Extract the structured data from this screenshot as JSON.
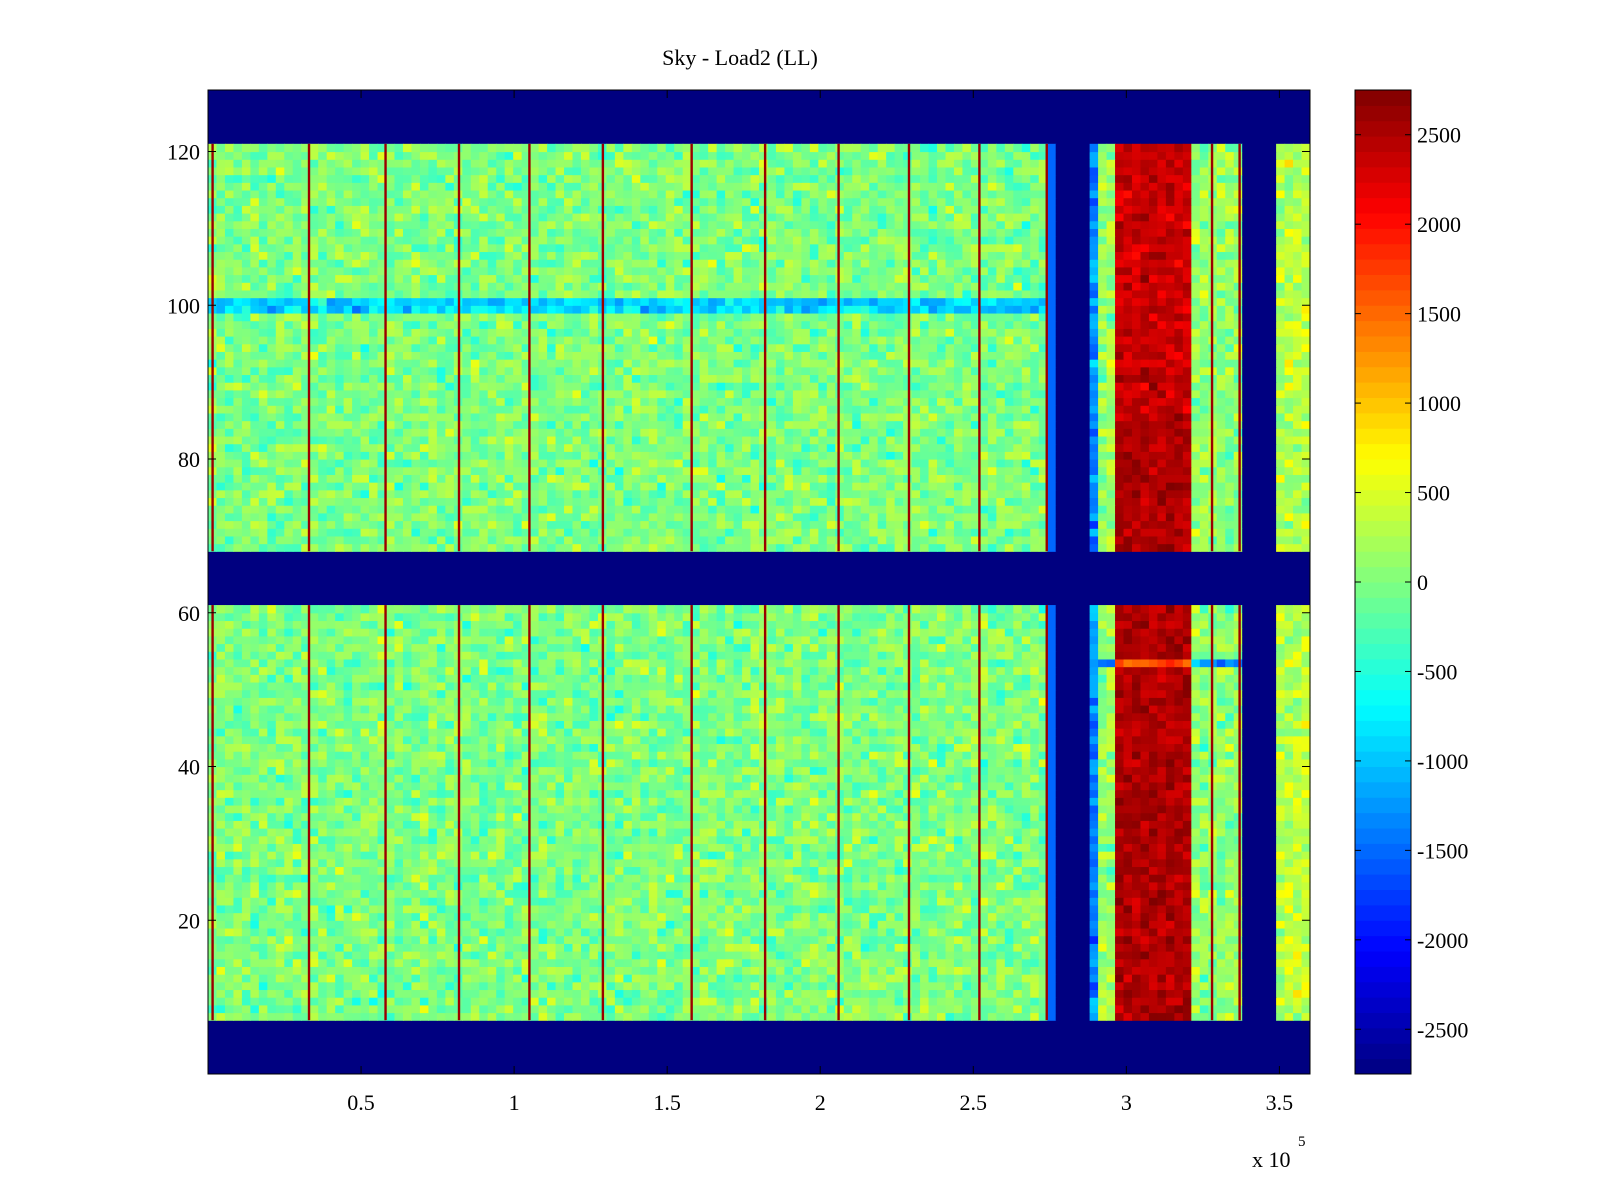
{
  "chart_data": {
    "type": "heatmap",
    "title": "Sky - Load2 (LL)",
    "xlabel": "",
    "ylabel": "",
    "x_multiplier_label": "x 10",
    "x_multiplier_exponent": "5",
    "xlim": [
      0,
      360000
    ],
    "ylim": [
      0,
      128
    ],
    "xticks": [
      50000,
      100000,
      150000,
      200000,
      250000,
      300000,
      350000
    ],
    "xtick_labels": [
      "0.5",
      "1",
      "1.5",
      "2",
      "2.5",
      "3",
      "3.5"
    ],
    "yticks": [
      20,
      40,
      60,
      80,
      100,
      120
    ],
    "ytick_labels": [
      "20",
      "40",
      "60",
      "80",
      "100",
      "120"
    ],
    "colormap": "jet",
    "clim": [
      -2750,
      2750
    ],
    "colorbar_ticks": [
      -2500,
      -2000,
      -1500,
      -1000,
      -500,
      0,
      500,
      1000,
      1500,
      2000,
      2500
    ],
    "colorbar_tick_labels": [
      "-2500",
      "-2000",
      "-1500",
      "-1000",
      "-500",
      "0",
      "500",
      "1000",
      "1500",
      "2000",
      "2500"
    ],
    "grid": false,
    "background_value": -2750,
    "noise_amplitude": 450,
    "flagged_rows": [
      [
        0,
        7
      ],
      [
        61,
        68
      ],
      [
        121,
        128
      ]
    ],
    "row_bands": [
      [
        7,
        61
      ],
      [
        68,
        121
      ]
    ],
    "column_regions": [
      {
        "x_start": 0,
        "x_end": 275000,
        "level": 0,
        "kind": "noise"
      },
      {
        "x_start": 275000,
        "x_end": 276000,
        "level": -1500,
        "kind": "flat"
      },
      {
        "x_start": 276000,
        "x_end": 288000,
        "level": -2750,
        "kind": "flat"
      },
      {
        "x_start": 288000,
        "x_end": 291000,
        "level": -1300,
        "kind": "noise"
      },
      {
        "x_start": 291000,
        "x_end": 297000,
        "level": 150,
        "kind": "noise"
      },
      {
        "x_start": 297000,
        "x_end": 321500,
        "level": 2500,
        "kind": "hot"
      },
      {
        "x_start": 321500,
        "x_end": 337500,
        "level": 100,
        "kind": "noise"
      },
      {
        "x_start": 337500,
        "x_end": 349000,
        "level": -2750,
        "kind": "flat"
      },
      {
        "x_start": 349000,
        "x_end": 360000,
        "level": 300,
        "kind": "noise"
      }
    ],
    "spike_columns": [
      1500,
      33000,
      58000,
      82000,
      105000,
      129000,
      158000,
      182000,
      206000,
      229000,
      252000,
      274000,
      328000,
      337000
    ],
    "spike_value": 2600,
    "row_features": [
      {
        "y_start": 99,
        "y_end": 101,
        "x_start": 0,
        "x_end": 275000,
        "level": -900
      },
      {
        "y_start": 53,
        "y_end": 54,
        "x_start": 275000,
        "x_end": 297000,
        "level": -1200
      },
      {
        "y_start": 53,
        "y_end": 54,
        "x_start": 297000,
        "x_end": 321500,
        "level": 1800
      },
      {
        "y_start": 53,
        "y_end": 54,
        "x_start": 321500,
        "x_end": 350000,
        "level": -1200
      }
    ]
  }
}
